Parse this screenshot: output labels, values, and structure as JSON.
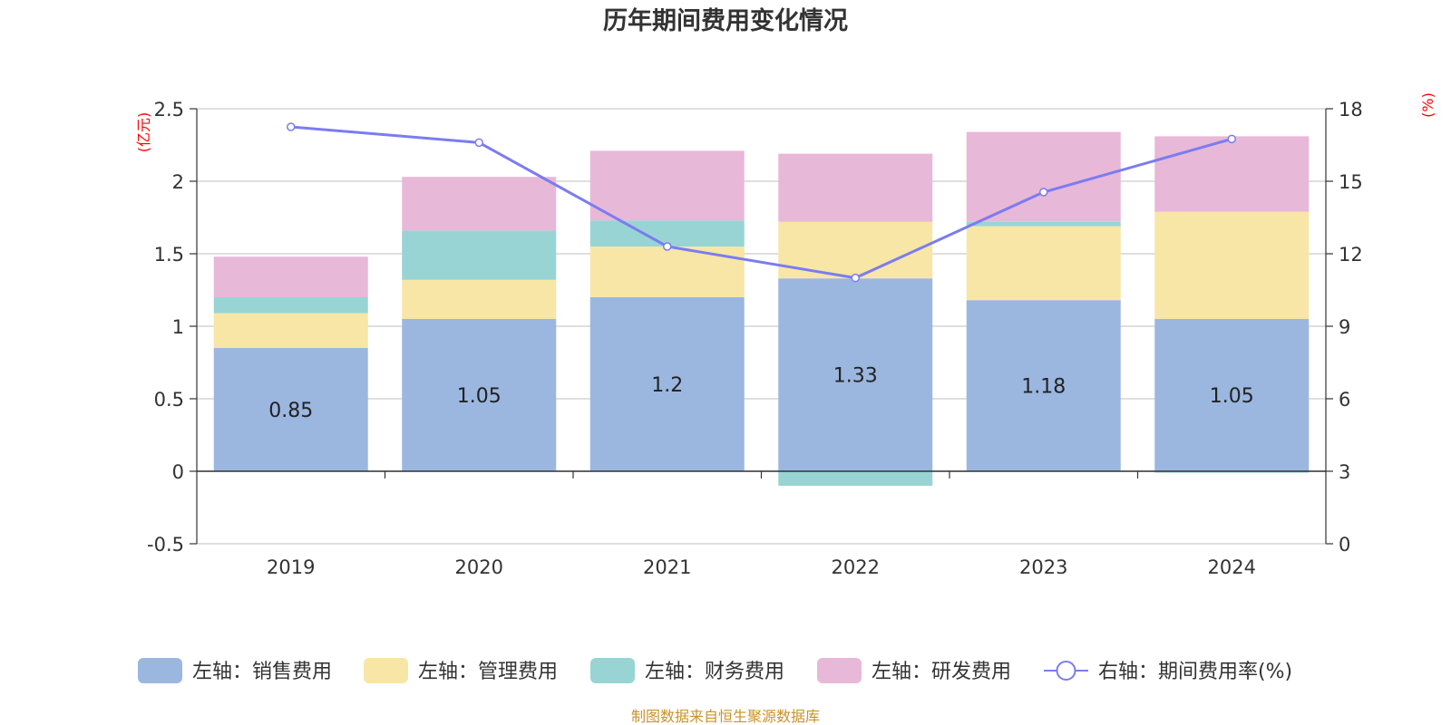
{
  "chart_data": {
    "type": "bar",
    "title": "历年期间费用变化情况",
    "categories": [
      "2019",
      "2020",
      "2021",
      "2022",
      "2023",
      "2024"
    ],
    "left_axis": {
      "unit_label": "(亿元)",
      "ylim": [
        -0.5,
        2.5
      ],
      "ticks": [
        "-0.5",
        "0",
        "0.5",
        "1",
        "1.5",
        "2",
        "2.5"
      ]
    },
    "right_axis": {
      "unit_label": "(%)",
      "ylim": [
        0,
        18
      ],
      "ticks": [
        "0",
        "3",
        "6",
        "9",
        "12",
        "15",
        "18"
      ]
    },
    "series": [
      {
        "name": "左轴：销售费用",
        "type": "bar",
        "axis": "left",
        "color": "#9bb7e0",
        "values": [
          0.85,
          1.05,
          1.2,
          1.33,
          1.18,
          1.05
        ],
        "labels": [
          "0.85",
          "1.05",
          "1.2",
          "1.33",
          "1.18",
          "1.05"
        ]
      },
      {
        "name": "左轴：管理费用",
        "type": "bar",
        "axis": "left",
        "color": "#f7e6a6",
        "values": [
          0.24,
          0.27,
          0.35,
          0.39,
          0.51,
          0.74
        ]
      },
      {
        "name": "左轴：财务费用",
        "type": "bar",
        "axis": "left",
        "color": "#98d4d4",
        "values": [
          0.11,
          0.34,
          0.18,
          -0.1,
          0.03,
          -0.01
        ]
      },
      {
        "name": "左轴：研发费用",
        "type": "bar",
        "axis": "left",
        "color": "#e8b8d8",
        "values": [
          0.28,
          0.37,
          0.48,
          0.47,
          0.62,
          0.52
        ]
      },
      {
        "name": "右轴：期间费用率(%)",
        "type": "line",
        "axis": "right",
        "color": "#7b7cf0",
        "values": [
          17.25,
          16.6,
          12.3,
          11.0,
          14.55,
          16.75
        ]
      }
    ],
    "legend_position": "bottom",
    "grid": true
  },
  "source_note": "制图数据来自恒生聚源数据库"
}
